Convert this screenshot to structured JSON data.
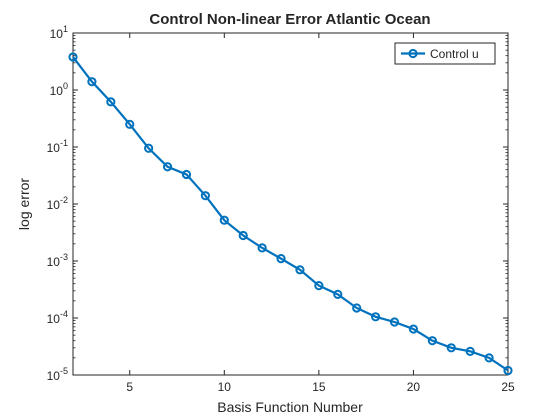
{
  "chart_data": {
    "type": "line",
    "title": "Control Non-linear Error Atlantic Ocean",
    "xlabel": "Basis Function Number",
    "ylabel": "log error",
    "x_scale": "linear",
    "y_scale": "log",
    "xlim": [
      2,
      25
    ],
    "ylim": [
      1e-05,
      10
    ],
    "x_ticks": [
      5,
      10,
      15,
      20,
      25
    ],
    "x_tick_labels": [
      "5",
      "10",
      "15",
      "20",
      "25"
    ],
    "y_ticks": [
      1e-05,
      0.0001,
      0.001,
      0.01,
      0.1,
      1,
      10
    ],
    "y_tick_labels": [
      {
        "base": "10",
        "exp": "-5"
      },
      {
        "base": "10",
        "exp": "-4"
      },
      {
        "base": "10",
        "exp": "-3"
      },
      {
        "base": "10",
        "exp": "-2"
      },
      {
        "base": "10",
        "exp": "-1"
      },
      {
        "base": "10",
        "exp": "0"
      },
      {
        "base": "10",
        "exp": "1"
      }
    ],
    "grid": false,
    "legend": {
      "position": "top-right",
      "entries": [
        "Control u"
      ]
    },
    "series": [
      {
        "name": "Control u",
        "color": "#0072BD",
        "marker": "circle",
        "x": [
          2,
          3,
          4,
          5,
          6,
          7,
          8,
          9,
          10,
          11,
          12,
          13,
          14,
          15,
          16,
          17,
          18,
          19,
          20,
          21,
          22,
          23,
          24,
          25
        ],
        "y": [
          3.8,
          1.4,
          0.62,
          0.25,
          0.095,
          0.045,
          0.033,
          0.014,
          0.0052,
          0.0028,
          0.0017,
          0.0011,
          0.0007,
          0.00037,
          0.00026,
          0.00015,
          0.000105,
          8.5e-05,
          6.4e-05,
          4e-05,
          3e-05,
          2.6e-05,
          2e-05,
          1.2e-05
        ]
      }
    ]
  }
}
